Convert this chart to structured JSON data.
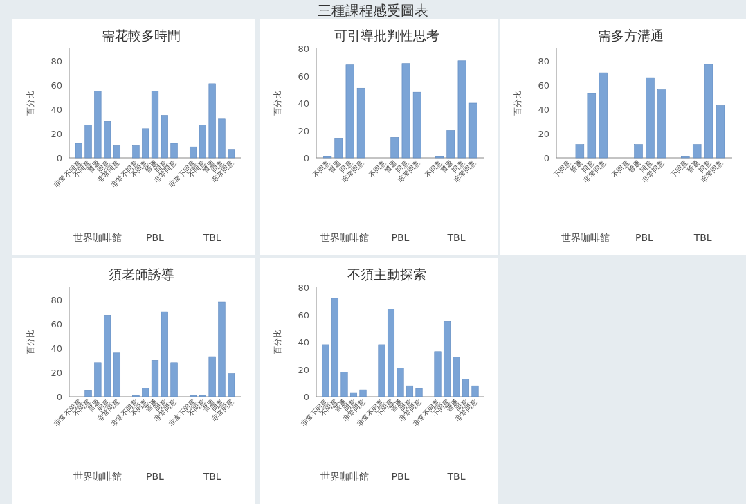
{
  "chart_data": [
    {
      "type": "other",
      "title": "三種課程感受圖表"
    },
    {
      "type": "bar",
      "title": "需花較多時間",
      "ylabel": "百分比",
      "color": "#7ba4d6",
      "categories": [
        "非常不同意",
        "不同意",
        "普通",
        "同意",
        "非常同意",
        "非常不同意",
        "不同意",
        "普通",
        "同意",
        "非常同意",
        "非常不同意",
        "不同意",
        "普通",
        "同意",
        "非常同意"
      ],
      "values": [
        12,
        27,
        55,
        30,
        10,
        10,
        24,
        55,
        35,
        12,
        9,
        27,
        61,
        32,
        7
      ],
      "annotations": [
        "世界咖啡館",
        "PBL",
        "TBL"
      ],
      "ylim": [
        0,
        90
      ],
      "yticks": [
        0,
        20,
        40,
        60,
        80
      ]
    },
    {
      "type": "bar",
      "title": "可引導批判性思考",
      "ylabel": "百分比",
      "color": "#7ba4d6",
      "categories": [
        "不同意",
        "普通",
        "同意",
        "非常同意",
        "不同意",
        "普通",
        "同意",
        "非常同意",
        "不同意",
        "普通",
        "同意",
        "非常同意"
      ],
      "values": [
        1,
        14,
        68,
        51,
        0,
        15,
        69,
        48,
        1,
        20,
        71,
        40
      ],
      "annotations": [
        "世界咖啡館",
        "PBL",
        "TBL"
      ],
      "ylim": [
        0,
        80
      ],
      "yticks": [
        0,
        20,
        40,
        60,
        80
      ]
    },
    {
      "type": "bar",
      "title": "需多方溝通",
      "ylabel": "百分比",
      "color": "#7ba4d6",
      "categories": [
        "不同意",
        "普通",
        "同意",
        "非常同意",
        "不同意",
        "普通",
        "同意",
        "非常同意",
        "不同意",
        "普通",
        "同意",
        "非常同意"
      ],
      "values": [
        0,
        11,
        53,
        70,
        0,
        11,
        66,
        56,
        1,
        11,
        77,
        43
      ],
      "annotations": [
        "世界咖啡館",
        "PBL",
        "TBL"
      ],
      "ylim": [
        0,
        90
      ],
      "yticks": [
        0,
        20,
        40,
        60,
        80
      ]
    },
    {
      "type": "bar",
      "title": "須老師誘導",
      "ylabel": "百分比",
      "color": "#7ba4d6",
      "categories": [
        "非常不同意",
        "不同意",
        "普通",
        "同意",
        "非常同意",
        "非常不同意",
        "不同意",
        "普通",
        "同意",
        "非常同意",
        "非常不同意",
        "不同意",
        "普通",
        "同意",
        "非常同意"
      ],
      "values": [
        0,
        5,
        28,
        67,
        36,
        1,
        7,
        30,
        70,
        28,
        1,
        1,
        33,
        78,
        19
      ],
      "annotations": [
        "世界咖啡館",
        "PBL",
        "TBL"
      ],
      "ylim": [
        0,
        90
      ],
      "yticks": [
        0,
        20,
        40,
        60,
        80
      ]
    },
    {
      "type": "bar",
      "title": "不須主動探索",
      "ylabel": "百分比",
      "color": "#7ba4d6",
      "categories": [
        "非常不同意",
        "不同意",
        "普通",
        "同意",
        "非常同意",
        "非常不同意",
        "不同意",
        "普通",
        "同意",
        "非常同意",
        "非常不同意",
        "不同意",
        "普通",
        "同意",
        "非常同意"
      ],
      "values": [
        38,
        72,
        18,
        3,
        5,
        38,
        64,
        21,
        8,
        6,
        33,
        55,
        29,
        13,
        8
      ],
      "annotations": [
        "世界咖啡館",
        "PBL",
        "TBL"
      ],
      "ylim": [
        0,
        80
      ],
      "yticks": [
        0,
        20,
        40,
        60,
        80
      ]
    }
  ]
}
